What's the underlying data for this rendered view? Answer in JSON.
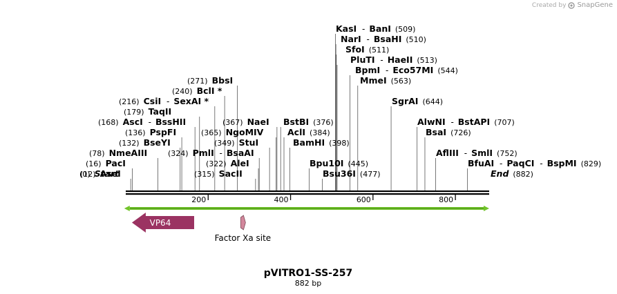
{
  "credit": {
    "prefix": "Created by",
    "brand": "SnapGene"
  },
  "plasmid": {
    "name": "pVITRO1-SS-257",
    "length_label": "882 bp",
    "length": 882
  },
  "ends": {
    "start": {
      "pos_label": "(0)",
      "name": "Start"
    },
    "end": {
      "name": "End",
      "pos_label": "(882)"
    }
  },
  "ruler": {
    "ticks": [
      {
        "pos": 200,
        "label": "200"
      },
      {
        "pos": 400,
        "label": "400"
      },
      {
        "pos": 600,
        "label": "600"
      },
      {
        "pos": 800,
        "label": "800"
      }
    ]
  },
  "sites": [
    {
      "pos": 12,
      "pos_label": "(12)",
      "names": [
        "AseI"
      ]
    },
    {
      "pos": 16,
      "pos_label": "(16)",
      "names": [
        "PacI"
      ]
    },
    {
      "pos": 78,
      "pos_label": "(78)",
      "names": [
        "NmeAIII"
      ]
    },
    {
      "pos": 132,
      "pos_label": "(132)",
      "names": [
        "BseYI"
      ]
    },
    {
      "pos": 136,
      "pos_label": "(136)",
      "names": [
        "PspFI"
      ]
    },
    {
      "pos": 168,
      "pos_label": "(168)",
      "names": [
        "AscI",
        "BssHII"
      ]
    },
    {
      "pos": 179,
      "pos_label": "(179)",
      "names": [
        "TaqII"
      ]
    },
    {
      "pos": 216,
      "pos_label": "(216)",
      "names": [
        "CsiI",
        "SexAI *"
      ]
    },
    {
      "pos": 240,
      "pos_label": "(240)",
      "names": [
        "BclI *"
      ]
    },
    {
      "pos": 271,
      "pos_label": "(271)",
      "names": [
        "BbsI"
      ]
    },
    {
      "pos": 315,
      "pos_label": "(315)",
      "names": [
        "SacII"
      ]
    },
    {
      "pos": 322,
      "pos_label": "(322)",
      "names": [
        "AleI"
      ]
    },
    {
      "pos": 324,
      "pos_label": "(324)",
      "names": [
        "PmlI",
        "BsaAI"
      ]
    },
    {
      "pos": 349,
      "pos_label": "(349)",
      "names": [
        "StuI"
      ]
    },
    {
      "pos": 365,
      "pos_label": "(365)",
      "names": [
        "NgoMIV"
      ]
    },
    {
      "pos": 367,
      "pos_label": "(367)",
      "names": [
        "NaeI"
      ]
    },
    {
      "pos": 376,
      "pos_label": "(376)",
      "names": [
        "BstBI"
      ]
    },
    {
      "pos": 384,
      "pos_label": "(384)",
      "names": [
        "AclI"
      ]
    },
    {
      "pos": 398,
      "pos_label": "(398)",
      "names": [
        "BamHI"
      ]
    },
    {
      "pos": 445,
      "pos_label": "(445)",
      "names": [
        "Bpu10I"
      ]
    },
    {
      "pos": 477,
      "pos_label": "(477)",
      "names": [
        "Bsu36I"
      ]
    },
    {
      "pos": 509,
      "pos_label": "(509)",
      "names": [
        "KasI",
        "BanI"
      ]
    },
    {
      "pos": 510,
      "pos_label": "(510)",
      "names": [
        "NarI",
        "BsaHI"
      ]
    },
    {
      "pos": 511,
      "pos_label": "(511)",
      "names": [
        "SfoI"
      ]
    },
    {
      "pos": 513,
      "pos_label": "(513)",
      "names": [
        "PluTI",
        "HaeII"
      ]
    },
    {
      "pos": 544,
      "pos_label": "(544)",
      "names": [
        "BpmI",
        "Eco57MI"
      ]
    },
    {
      "pos": 563,
      "pos_label": "(563)",
      "names": [
        "MmeI"
      ]
    },
    {
      "pos": 644,
      "pos_label": "(644)",
      "names": [
        "SgrAI"
      ]
    },
    {
      "pos": 707,
      "pos_label": "(707)",
      "names": [
        "AlwNI",
        "BstAPI"
      ]
    },
    {
      "pos": 726,
      "pos_label": "(726)",
      "names": [
        "BsaI"
      ]
    },
    {
      "pos": 752,
      "pos_label": "(752)",
      "names": [
        "AflIII",
        "SmlI"
      ]
    },
    {
      "pos": 829,
      "pos_label": "(829)",
      "names": [
        "BfuAI",
        "PaqCI",
        "BspMI"
      ]
    }
  ],
  "features": [
    {
      "name": "VP64",
      "start": 15,
      "end": 166,
      "strand": "reverse",
      "color": "#9b3362",
      "label_position": "inside"
    },
    {
      "name": "Factor Xa site",
      "start": 278,
      "end": 290,
      "strand": "forward",
      "color": "#d3879c",
      "label_position": "below"
    }
  ],
  "colors": {
    "backbone": "#000000",
    "orf": "#72c42a",
    "line": "#555555"
  }
}
